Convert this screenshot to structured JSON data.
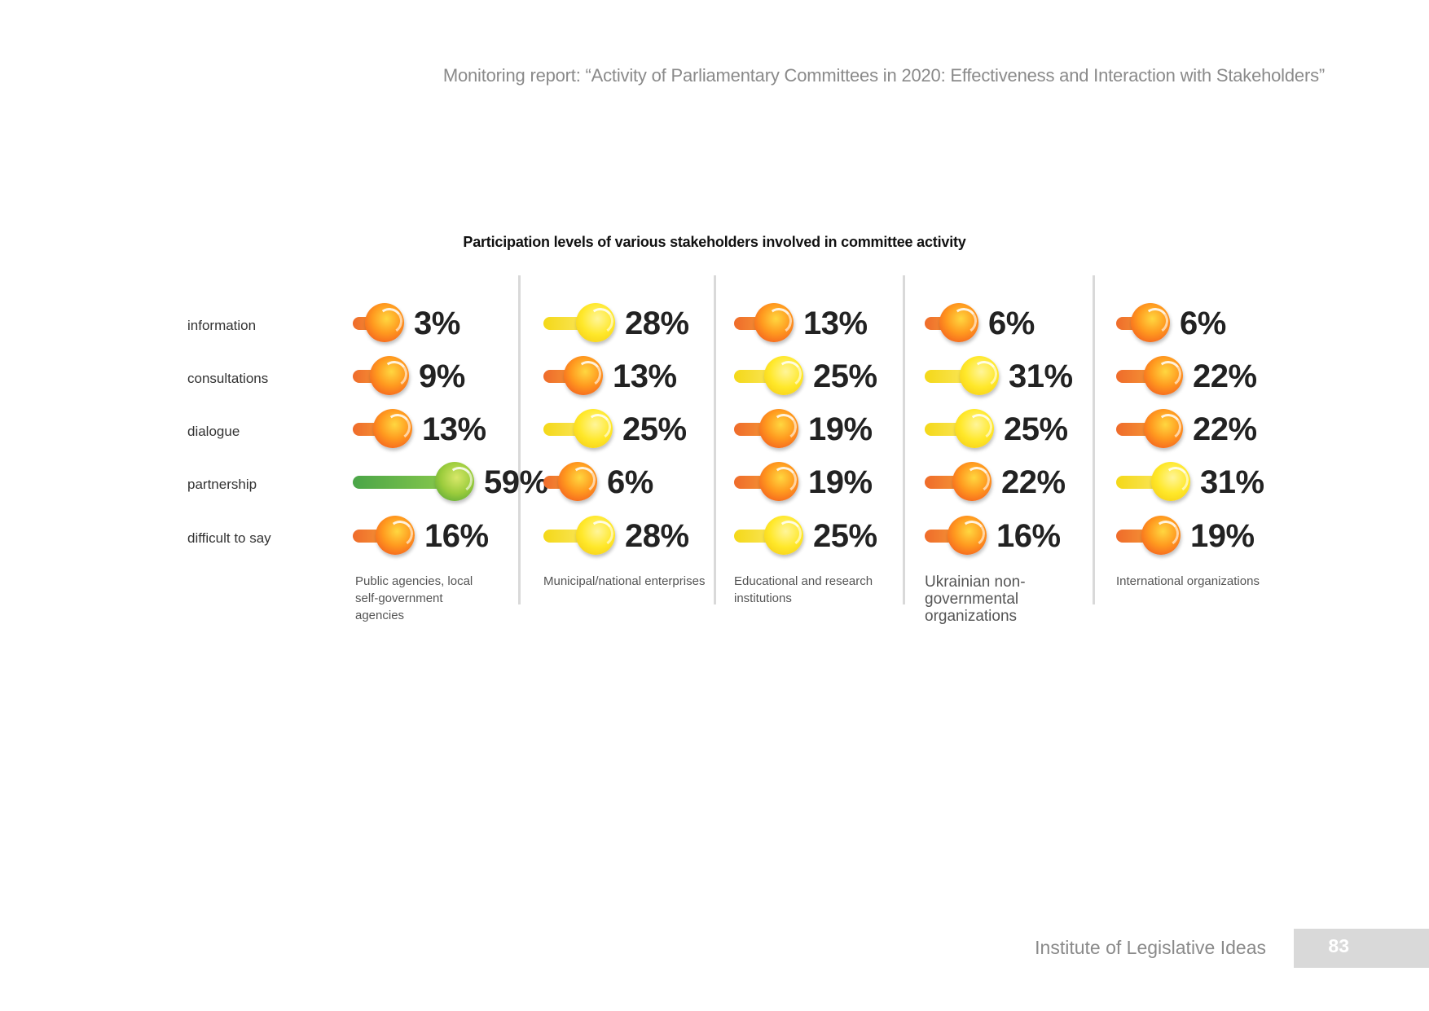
{
  "header": "Monitoring report: “Activity of Parliamentary Committees in 2020: Effectiveness and Interaction with Stakeholders”",
  "title": "Participation levels of various stakeholders involved in committee activity",
  "rows": [
    "information",
    "consultations",
    "dialogue",
    "partnership",
    "difficult to say"
  ],
  "columns": [
    {
      "label": "Public agencies, local self-government agencies",
      "values": [
        "3%",
        "9%",
        "13%",
        "59%",
        "16%"
      ],
      "colors": [
        "orange",
        "orange",
        "orange",
        "green",
        "orange"
      ]
    },
    {
      "label": "Municipal/national enterprises",
      "values": [
        "28%",
        "13%",
        "25%",
        "6%",
        "28%"
      ],
      "colors": [
        "yellow",
        "orange",
        "yellow",
        "orange",
        "yellow"
      ]
    },
    {
      "label": "Educational and research institutions",
      "values": [
        "13%",
        "25%",
        "19%",
        "19%",
        "25%"
      ],
      "colors": [
        "orange",
        "yellow",
        "orange",
        "orange",
        "yellow"
      ]
    },
    {
      "label": "Ukrainian non-governmental organizations",
      "values": [
        "6%",
        "31%",
        "25%",
        "22%",
        "16%"
      ],
      "colors": [
        "orange",
        "yellow",
        "yellow",
        "orange",
        "orange"
      ]
    },
    {
      "label": "International organizations",
      "values": [
        "6%",
        "22%",
        "22%",
        "31%",
        "19%"
      ],
      "colors": [
        "orange",
        "orange",
        "orange",
        "yellow",
        "orange"
      ]
    }
  ],
  "chart_data": {
    "type": "table",
    "title": "Participation levels of various stakeholders involved in committee activity",
    "categories": [
      "information",
      "consultations",
      "dialogue",
      "partnership",
      "difficult to say"
    ],
    "series": [
      {
        "name": "Public agencies, local self-government agencies",
        "values": [
          3,
          9,
          13,
          59,
          16
        ]
      },
      {
        "name": "Municipal/national enterprises",
        "values": [
          28,
          13,
          25,
          6,
          28
        ]
      },
      {
        "name": "Educational and research institutions",
        "values": [
          13,
          25,
          19,
          19,
          25
        ]
      },
      {
        "name": "Ukrainian non-governmental organizations",
        "values": [
          6,
          31,
          25,
          22,
          16
        ]
      },
      {
        "name": "International organizations",
        "values": [
          6,
          22,
          22,
          31,
          19
        ]
      }
    ],
    "unit": "%"
  },
  "footer": {
    "org": "Institute of Legislative Ideas",
    "page": "83"
  }
}
